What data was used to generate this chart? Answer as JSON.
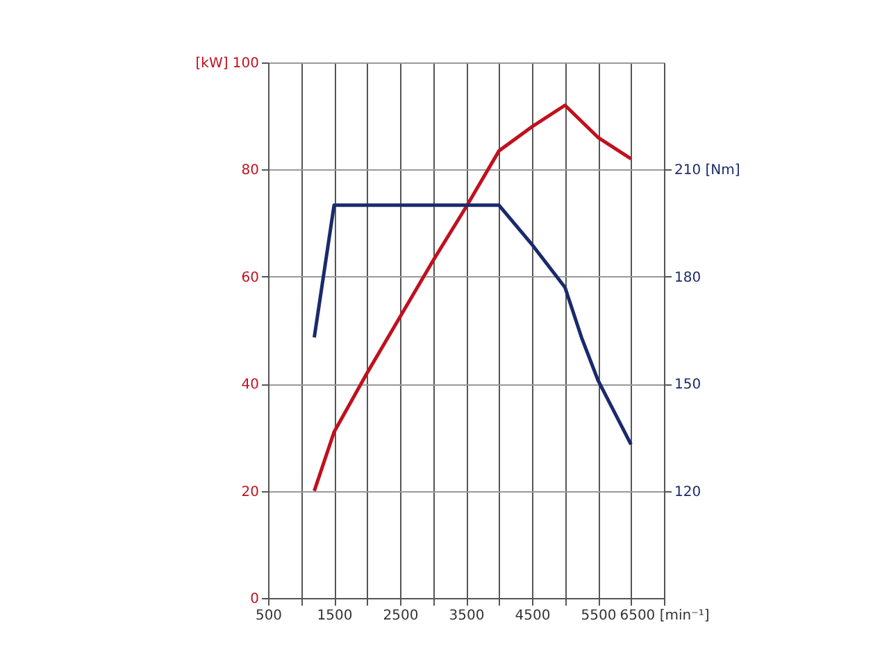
{
  "chart_data": {
    "type": "line",
    "xlim": [
      500,
      6500
    ],
    "xticks": [
      500,
      {
        "value": 1000,
        "label": null
      },
      1500,
      {
        "value": 2000,
        "label": null
      },
      2500,
      {
        "value": 3000,
        "label": null
      },
      3500,
      {
        "value": 4000,
        "label": null
      },
      4500,
      {
        "value": 5000,
        "label": null
      },
      5500,
      {
        "value": 6000,
        "label": null
      },
      {
        "value": 6500,
        "label": "6500 [min⁻¹]"
      }
    ],
    "ylim": [
      0,
      100
    ],
    "yticks": [
      0,
      20,
      40,
      60,
      80,
      {
        "value": 100,
        "label": "[kW] 100"
      }
    ],
    "y2lim": [
      90,
      240
    ],
    "y2ticks": [
      120,
      150,
      180,
      {
        "value": 210,
        "label": "210 [Nm]"
      }
    ],
    "grid": true,
    "marker": "none",
    "line_style": "solid",
    "series": [
      {
        "color": "#c0101e",
        "x": [
          1200,
          1500,
          2000,
          2500,
          3000,
          3500,
          4000,
          4500,
          5000,
          5500,
          6000
        ],
        "values": [
          20,
          31,
          42,
          52.5,
          63,
          73,
          83.5,
          88,
          92,
          86,
          82
        ]
      },
      {
        "color": "#1a2a6c",
        "axis": "y2",
        "x": [
          1200,
          1500,
          2000,
          3000,
          4000,
          4500,
          5000,
          5250,
          5500,
          6000
        ],
        "values": [
          163,
          200,
          200,
          200,
          200,
          189,
          177,
          163,
          151,
          133
        ]
      }
    ]
  }
}
